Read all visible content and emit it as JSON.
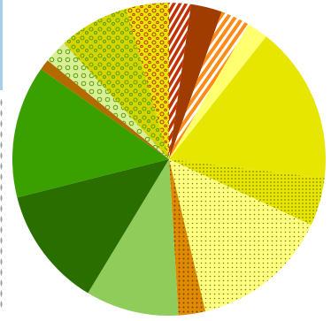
{
  "chart_data": {
    "type": "pie",
    "title": "",
    "start_angle_deg": 0,
    "direction": "clockwise",
    "slices": [
      {
        "value": 2.6,
        "color": "#b83a00",
        "pattern": "none"
      },
      {
        "value": 3.7,
        "color": "#a03c00",
        "pattern": "solid"
      },
      {
        "value": 3.5,
        "color": "#ff8c1a",
        "pattern": "stripes"
      },
      {
        "value": 2.5,
        "color": "#ffff70",
        "pattern": "solid"
      },
      {
        "value": 18.8,
        "color": "#e6e600",
        "pattern": "solid"
      },
      {
        "value": 5.7,
        "color": "#dede00",
        "pattern": "dots"
      },
      {
        "value": 16.6,
        "color": "#ffff80",
        "pattern": "dots"
      },
      {
        "value": 3.2,
        "color": "#e08a00",
        "pattern": "dots"
      },
      {
        "value": 11.1,
        "color": "#8fcc5a",
        "pattern": "solid"
      },
      {
        "value": 14.3,
        "color": "#2a6e00",
        "pattern": "solid"
      },
      {
        "value": 15.8,
        "color": "#3aa000",
        "pattern": "solid"
      },
      {
        "value": 1.3,
        "color": "#b36b00",
        "pattern": "solid"
      },
      {
        "value": 2.8,
        "color": "#cfe89a",
        "pattern": "circles"
      },
      {
        "value": 8.4,
        "color": "#d4d400",
        "pattern": "circles"
      },
      {
        "value": 5.1,
        "color": "#e6e600",
        "pattern": "circles-red"
      }
    ]
  }
}
